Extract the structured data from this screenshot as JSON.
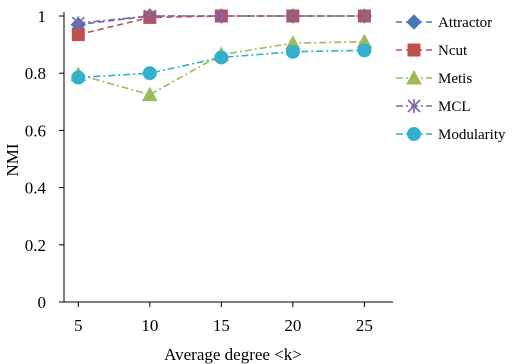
{
  "chart_data": {
    "type": "line",
    "title": "",
    "xlabel": "Average degree <k>",
    "ylabel": "NMI",
    "x": [
      5,
      10,
      15,
      20,
      25
    ],
    "xlim": [
      4,
      27
    ],
    "ylim": [
      0,
      1
    ],
    "x_ticks": [
      "5",
      "10",
      "15",
      "20",
      "25"
    ],
    "y_ticks": [
      "0",
      "0.2",
      "0.4",
      "0.6",
      "0.8",
      "1"
    ],
    "grid": false,
    "legend_position": "right",
    "series": [
      {
        "name": "Attractor",
        "values": [
          0.97,
          1.0,
          1.0,
          1.0,
          1.0
        ],
        "color": "#4a77b4",
        "marker": "diamond",
        "dash": "dashed"
      },
      {
        "name": "Ncut",
        "values": [
          0.935,
          0.995,
          1.0,
          1.0,
          1.0
        ],
        "color": "#c0504d",
        "marker": "square",
        "dash": "dashed"
      },
      {
        "name": "Metis",
        "values": [
          0.795,
          0.725,
          0.865,
          0.905,
          0.91
        ],
        "color": "#9bbb59",
        "marker": "triangle",
        "dash": "dashdot"
      },
      {
        "name": "MCL",
        "values": [
          0.975,
          1.0,
          1.0,
          1.0,
          1.0
        ],
        "color": "#7f66a6",
        "marker": "asterisk",
        "dash": "dashdot"
      },
      {
        "name": "Modularity",
        "values": [
          0.785,
          0.8,
          0.855,
          0.875,
          0.88
        ],
        "color": "#33b0cc",
        "marker": "circle",
        "dash": "dashdot"
      }
    ]
  }
}
